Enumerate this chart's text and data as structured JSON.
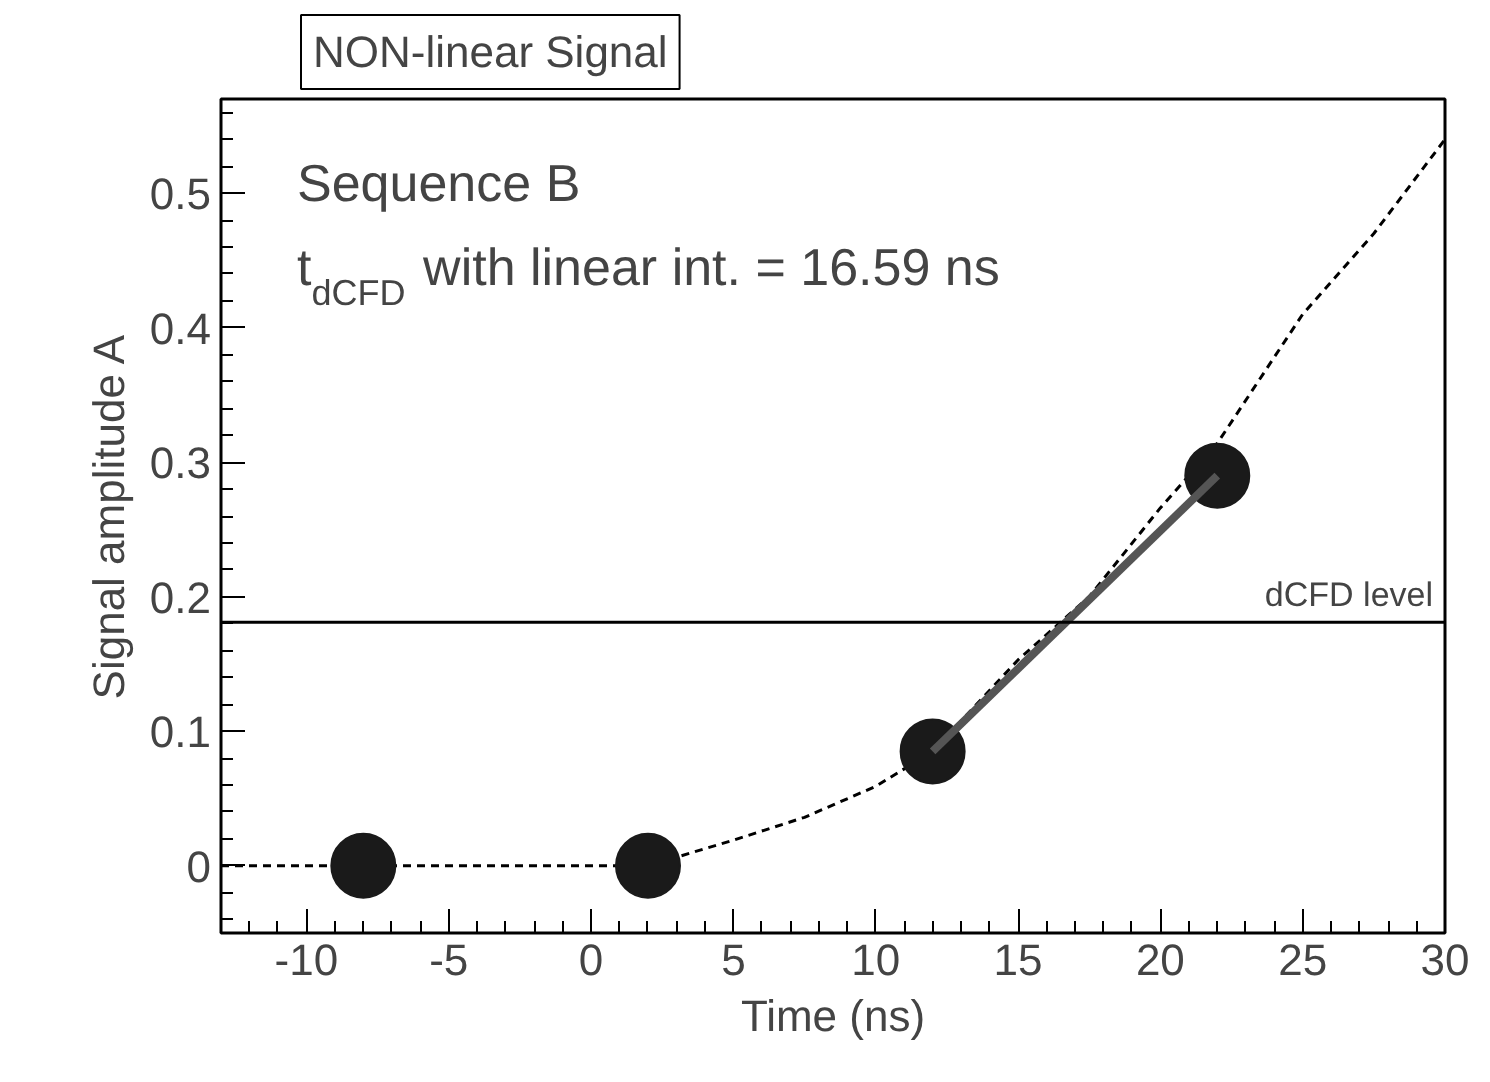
{
  "chart_data": {
    "type": "scatter",
    "title": "NON-linear Signal",
    "xlabel": "Time (ns)",
    "ylabel": "Signal amplitude A",
    "xlim": [
      -13,
      30
    ],
    "xticks": [
      -10,
      -5,
      0,
      5,
      10,
      15,
      20,
      25,
      30
    ],
    "ylim": [
      -0.05,
      0.57
    ],
    "yticks": [
      0,
      0.1,
      0.2,
      0.3,
      0.4,
      0.5
    ],
    "grid": false,
    "annotations": [
      "Sequence B",
      "t$_{dCFD}$ with linear int. = 16.59 ns"
    ],
    "ref_lines": [
      {
        "axis": "y",
        "value": 0.181,
        "label": "dCFD level",
        "color": "#000000",
        "line_style": "solid"
      }
    ],
    "series": [
      {
        "type": "line",
        "line_style": "dashed",
        "color": "#000000",
        "x": [
          -13,
          2,
          5,
          7.5,
          10,
          12,
          15,
          17.5,
          20,
          22,
          25,
          27.5,
          30
        ],
        "values": [
          0,
          0,
          0.019,
          0.036,
          0.059,
          0.085,
          0.153,
          0.2,
          0.266,
          0.314,
          0.41,
          0.47,
          0.54
        ]
      },
      {
        "type": "scatter",
        "marker": "circle",
        "color": "#1a1a1a",
        "x": [
          -8,
          2,
          12,
          22
        ],
        "values": [
          0,
          0,
          0.085,
          0.29
        ]
      },
      {
        "type": "line",
        "line_style": "solid",
        "color": "#555555",
        "x": [
          12,
          22
        ],
        "values": [
          0.085,
          0.29
        ]
      }
    ]
  }
}
